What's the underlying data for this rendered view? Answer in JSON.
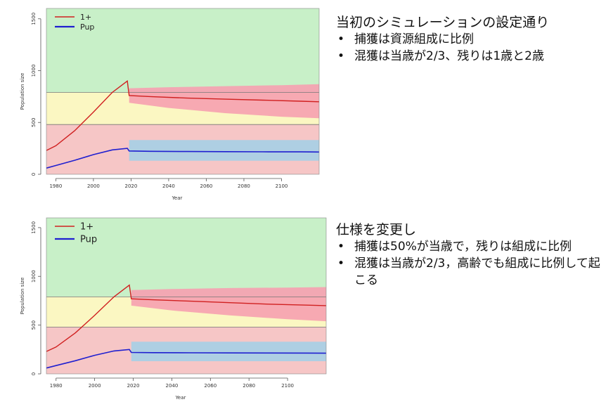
{
  "chart_data": [
    {
      "type": "line",
      "title": "",
      "xlabel": "Year",
      "ylabel": "Population size",
      "xlim": [
        1975,
        2120
      ],
      "ylim": [
        0,
        1600
      ],
      "xticks": [
        1980,
        2000,
        2020,
        2040,
        2060,
        2080,
        2100
      ],
      "xtick_labels": [
        "1980",
        "2000",
        "2020",
        "2040",
        "2060",
        "2080",
        "2100"
      ],
      "yticks": [
        0,
        500,
        1000,
        1500
      ],
      "ytick_labels": [
        "0",
        "500",
        "1000",
        "1500"
      ],
      "legend": [
        "1+",
        "Pup"
      ],
      "legend_position": "top-left",
      "thresholds": [
        790,
        480
      ],
      "zone_colors": {
        "green": "#c8f0c8",
        "yellow": "#fbf7c2",
        "red_zone": "#f6c6c6"
      },
      "series": [
        {
          "name": "1+",
          "color": "#d02020",
          "x": [
            1975,
            1980,
            1990,
            2000,
            2010,
            2018,
            2019,
            2030,
            2050,
            2070,
            2090,
            2110,
            2120
          ],
          "y": [
            230,
            275,
            420,
            600,
            790,
            900,
            760,
            750,
            735,
            725,
            715,
            705,
            700
          ]
        },
        {
          "name": "Pup",
          "color": "#1f1fd0",
          "x": [
            1975,
            1980,
            1990,
            2000,
            2010,
            2018,
            2019,
            2030,
            2050,
            2070,
            2090,
            2110,
            2120
          ],
          "y": [
            60,
            85,
            135,
            190,
            235,
            250,
            225,
            222,
            220,
            218,
            217,
            216,
            215
          ]
        }
      ],
      "bands": [
        {
          "series": "1+",
          "color": "#f6a0b0",
          "x": [
            2019,
            2040,
            2070,
            2100,
            2120
          ],
          "upper": [
            830,
            840,
            850,
            860,
            870
          ],
          "lower": [
            690,
            640,
            590,
            555,
            540
          ]
        },
        {
          "series": "Pup",
          "color": "#a6cfe6",
          "x": [
            2019,
            2120
          ],
          "upper": [
            330,
            330
          ],
          "lower": [
            130,
            130
          ]
        }
      ]
    },
    {
      "type": "line",
      "title": "",
      "xlabel": "Year",
      "ylabel": "Population size",
      "xlim": [
        1975,
        2120
      ],
      "ylim": [
        0,
        1600
      ],
      "xticks": [
        1980,
        2000,
        2020,
        2040,
        2060,
        2080,
        2100
      ],
      "xtick_labels": [
        "1980",
        "2000",
        "2020",
        "2040",
        "2060",
        "2080",
        "2100"
      ],
      "yticks": [
        0,
        500,
        1000,
        1500
      ],
      "ytick_labels": [
        "0",
        "500",
        "1000",
        "1500"
      ],
      "legend": [
        "1+",
        "Pup"
      ],
      "legend_position": "top-left",
      "thresholds": [
        790,
        480
      ],
      "zone_colors": {
        "green": "#c8f0c8",
        "yellow": "#fbf7c2",
        "red_zone": "#f6c6c6"
      },
      "series": [
        {
          "name": "1+",
          "color": "#d02020",
          "x": [
            1975,
            1980,
            1990,
            2000,
            2010,
            2018,
            2019,
            2030,
            2050,
            2070,
            2090,
            2110,
            2120
          ],
          "y": [
            230,
            275,
            420,
            600,
            790,
            910,
            770,
            760,
            745,
            730,
            715,
            705,
            700
          ]
        },
        {
          "name": "Pup",
          "color": "#1f1fd0",
          "x": [
            1975,
            1980,
            1990,
            2000,
            2010,
            2018,
            2019,
            2030,
            2050,
            2070,
            2090,
            2110,
            2120
          ],
          "y": [
            60,
            85,
            135,
            190,
            235,
            250,
            220,
            218,
            216,
            215,
            214,
            213,
            212
          ]
        }
      ],
      "bands": [
        {
          "series": "1+",
          "color": "#f6a0b0",
          "x": [
            2019,
            2040,
            2070,
            2100,
            2120
          ],
          "upper": [
            860,
            870,
            880,
            885,
            890
          ],
          "lower": [
            700,
            650,
            600,
            560,
            540
          ]
        },
        {
          "series": "Pup",
          "color": "#a6cfe6",
          "x": [
            2019,
            2120
          ],
          "upper": [
            330,
            330
          ],
          "lower": [
            130,
            130
          ]
        }
      ]
    }
  ],
  "notes": [
    {
      "title": "当初のシミュレーションの設定通り",
      "bullets": [
        "捕獲は資源組成に比例",
        "混獲は当歳が2/3、残りは1歳と2歳"
      ]
    },
    {
      "title": "仕様を変更し",
      "bullets": [
        "捕獲は50%が当歳で，残りは組成に比例",
        "混獲は当歳が2/3，高齢でも組成に比例して起こる"
      ]
    }
  ]
}
